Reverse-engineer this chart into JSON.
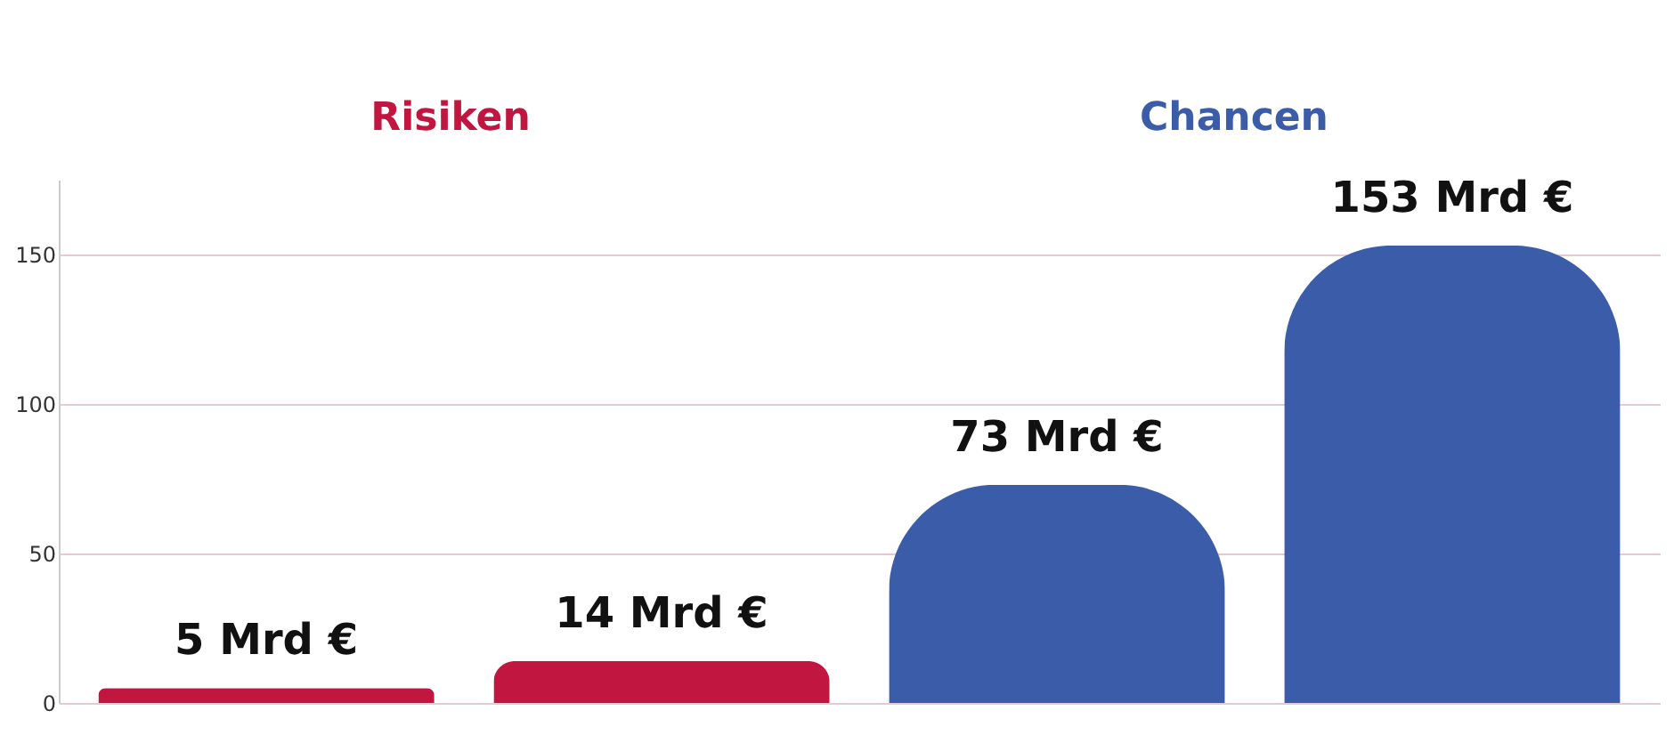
{
  "chart_data": {
    "type": "bar",
    "categories": [
      null,
      null,
      null,
      null
    ],
    "values": [
      5,
      14,
      73,
      153
    ],
    "colors": [
      "#c0163f",
      "#c0163f",
      "#3b5ca8",
      "#3b5ca8"
    ],
    "value_labels": [
      "5 Mrd €",
      "14 Mrd €",
      "73 Mrd €",
      "153 Mrd €"
    ],
    "annotations": [
      "Risiken",
      "Chancen"
    ],
    "ylim": [
      0,
      175
    ],
    "yticks": [
      0,
      50,
      100,
      150
    ],
    "grid": "y",
    "tick_labels": "y"
  }
}
